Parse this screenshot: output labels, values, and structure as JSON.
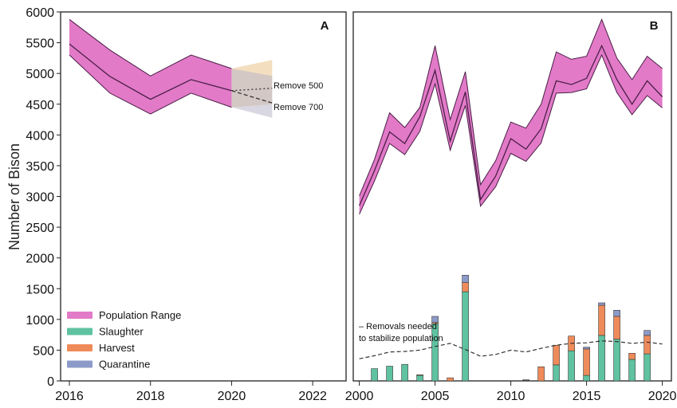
{
  "chart_data": [
    {
      "panel": "A",
      "type": "area",
      "xlim": [
        2016,
        2023
      ],
      "ylim": [
        0,
        6000
      ],
      "x_ticks": [
        2016,
        2018,
        2020,
        2022
      ],
      "y_ticks": [
        0,
        500,
        1000,
        1500,
        2000,
        2500,
        3000,
        3500,
        4000,
        4500,
        5000,
        5500,
        6000
      ],
      "ylabel": "Number of Bison",
      "population_range": {
        "x": [
          2016,
          2017,
          2018,
          2019,
          2020
        ],
        "mid": [
          5480,
          4950,
          4580,
          4900,
          4720
        ],
        "upper": [
          5880,
          5380,
          4960,
          5300,
          5080
        ],
        "lower": [
          5300,
          4680,
          4340,
          4680,
          4450
        ]
      },
      "projections": [
        {
          "label": "Remove 500",
          "x": [
            2020,
            2021
          ],
          "mid": [
            4720,
            4760
          ],
          "upper": [
            5080,
            5220
          ],
          "lower": [
            4450,
            4500
          ],
          "color": "#e9c28b",
          "line_style": "dotted"
        },
        {
          "label": "Remove 700",
          "x": [
            2020,
            2021
          ],
          "mid": [
            4720,
            4520
          ],
          "upper": [
            5080,
            4960
          ],
          "lower": [
            4450,
            4280
          ],
          "color": "#b9b6c8",
          "line_style": "dashed"
        }
      ],
      "legend": {
        "placement": "bottom-left",
        "entries": [
          {
            "label": "Population Range",
            "color": "#e27ac8"
          },
          {
            "label": "Slaughter",
            "color": "#5fc2a0"
          },
          {
            "label": "Harvest",
            "color": "#ef8b5a"
          },
          {
            "label": "Quarantine",
            "color": "#8c9ac9"
          }
        ]
      }
    },
    {
      "panel": "B",
      "type": "line",
      "xlim": [
        1999.6,
        2020.6
      ],
      "ylim": [
        0,
        6000
      ],
      "x_ticks": [
        2000,
        2005,
        2010,
        2015,
        2020
      ],
      "population_range": {
        "x": [
          2000,
          2001,
          2002,
          2003,
          2004,
          2005,
          2006,
          2007,
          2008,
          2009,
          2010,
          2011,
          2012,
          2013,
          2014,
          2015,
          2016,
          2017,
          2018,
          2019,
          2020
        ],
        "mid": [
          2850,
          3420,
          4050,
          3860,
          4300,
          5050,
          3900,
          4700,
          2950,
          3330,
          3940,
          3770,
          4100,
          4880,
          4820,
          4920,
          5450,
          4900,
          4500,
          4880,
          4620
        ],
        "upper": [
          3010,
          3600,
          4360,
          4120,
          4450,
          5450,
          4250,
          5030,
          3190,
          3580,
          4210,
          4110,
          4500,
          5350,
          5230,
          5280,
          5880,
          5250,
          4900,
          5280,
          5080
        ],
        "lower": [
          2710,
          3250,
          3860,
          3680,
          4060,
          4830,
          3750,
          4480,
          2840,
          3160,
          3700,
          3570,
          3870,
          4680,
          4690,
          4750,
          5300,
          4690,
          4330,
          4640,
          4440
        ]
      },
      "removals_needed": {
        "label": "– Removals needed\nto stabilize population",
        "line_style": "dashed",
        "x": [
          2000,
          2001,
          2002,
          2003,
          2004,
          2005,
          2006,
          2007,
          2008,
          2009,
          2010,
          2011,
          2012,
          2013,
          2014,
          2015,
          2016,
          2017,
          2018,
          2019,
          2020
        ],
        "values": [
          360,
          410,
          470,
          480,
          500,
          560,
          610,
          510,
          400,
          430,
          500,
          470,
          530,
          580,
          610,
          620,
          650,
          640,
          610,
          630,
          600
        ]
      },
      "removals": {
        "type": "bar",
        "stacked": true,
        "years": [
          2000,
          2001,
          2002,
          2003,
          2004,
          2005,
          2006,
          2007,
          2008,
          2009,
          2010,
          2011,
          2012,
          2013,
          2014,
          2015,
          2016,
          2017,
          2018,
          2019,
          2020
        ],
        "series": [
          {
            "name": "Slaughter",
            "color": "#5fc2a0",
            "values": [
              0,
              200,
              240,
              270,
              90,
              930,
              0,
              1450,
              0,
              0,
              0,
              0,
              0,
              260,
              490,
              90,
              740,
              680,
              350,
              440,
              0
            ]
          },
          {
            "name": "Harvest",
            "color": "#ef8b5a",
            "values": [
              0,
              0,
              0,
              0,
              10,
              20,
              50,
              150,
              0,
              0,
              0,
              10,
              230,
              320,
              240,
              430,
              490,
              370,
              100,
              300,
              0
            ]
          },
          {
            "name": "Quarantine",
            "color": "#8c9ac9",
            "values": [
              0,
              0,
              0,
              0,
              0,
              100,
              0,
              120,
              0,
              0,
              0,
              10,
              0,
              0,
              0,
              30,
              40,
              100,
              0,
              80,
              0
            ]
          }
        ]
      }
    }
  ],
  "panel_labels": {
    "a": "A",
    "b": "B"
  },
  "annotations": {
    "remove_500": "Remove 500",
    "remove_700": "Remove 700",
    "removals_line1": "– Removals needed",
    "removals_line2": "to stabilize population"
  },
  "axis_title": "Number of Bison",
  "colors": {
    "band_fill": "#e27ac8",
    "band_line": "#4b1f47",
    "slaughter": "#5fc2a0",
    "harvest": "#ef8b5a",
    "quarantine": "#8c9ac9",
    "axis": "#222222"
  }
}
